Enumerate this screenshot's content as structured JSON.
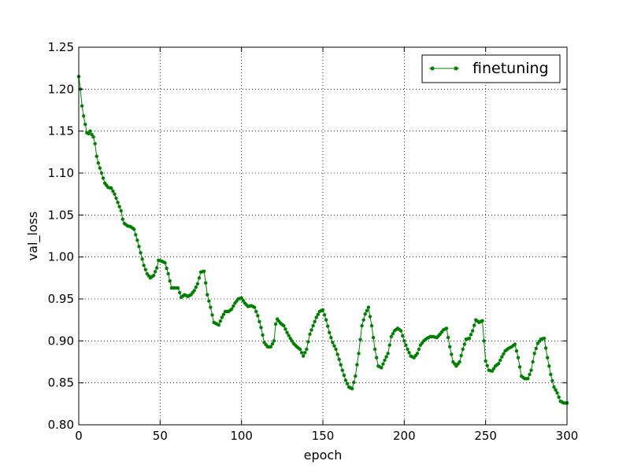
{
  "chart_data": {
    "type": "line",
    "xlabel": "epoch",
    "ylabel": "val_loss",
    "xlim": [
      0,
      300
    ],
    "ylim": [
      0.8,
      1.25
    ],
    "xticks": [
      0,
      50,
      100,
      150,
      200,
      250,
      300
    ],
    "yticks": [
      0.8,
      0.85,
      0.9,
      0.95,
      1.0,
      1.05,
      1.1,
      1.15,
      1.2,
      1.25
    ],
    "xtick_labels": [
      "0",
      "50",
      "100",
      "150",
      "200",
      "250",
      "300"
    ],
    "ytick_labels": [
      "0.80",
      "0.85",
      "0.90",
      "0.95",
      "1.00",
      "1.05",
      "1.10",
      "1.15",
      "1.20",
      "1.25"
    ],
    "grid": true,
    "legend_placement": "top-right",
    "series": [
      {
        "name": "finetuning",
        "color": "#008000",
        "marker": "dot",
        "anchors": [
          [
            0,
            1.215
          ],
          [
            1,
            1.2
          ],
          [
            2,
            1.18
          ],
          [
            3,
            1.168
          ],
          [
            4,
            1.158
          ],
          [
            5,
            1.148
          ],
          [
            6,
            1.147
          ],
          [
            7,
            1.15
          ],
          [
            8,
            1.146
          ],
          [
            9,
            1.143
          ],
          [
            10,
            1.135
          ],
          [
            11,
            1.12
          ],
          [
            12,
            1.112
          ],
          [
            14,
            1.1
          ],
          [
            16,
            1.088
          ],
          [
            18,
            1.083
          ],
          [
            20,
            1.082
          ],
          [
            22,
            1.075
          ],
          [
            24,
            1.065
          ],
          [
            26,
            1.055
          ],
          [
            27,
            1.045
          ],
          [
            28,
            1.04
          ],
          [
            30,
            1.037
          ],
          [
            32,
            1.036
          ],
          [
            34,
            1.033
          ],
          [
            36,
            1.02
          ],
          [
            38,
            1.005
          ],
          [
            40,
            0.99
          ],
          [
            42,
            0.98
          ],
          [
            44,
            0.975
          ],
          [
            46,
            0.978
          ],
          [
            48,
            0.987
          ],
          [
            49,
            0.996
          ],
          [
            51,
            0.995
          ],
          [
            53,
            0.993
          ],
          [
            55,
            0.98
          ],
          [
            57,
            0.963
          ],
          [
            59,
            0.963
          ],
          [
            61,
            0.963
          ],
          [
            63,
            0.952
          ],
          [
            65,
            0.955
          ],
          [
            67,
            0.953
          ],
          [
            69,
            0.955
          ],
          [
            71,
            0.96
          ],
          [
            73,
            0.968
          ],
          [
            75,
            0.982
          ],
          [
            77,
            0.983
          ],
          [
            79,
            0.955
          ],
          [
            81,
            0.94
          ],
          [
            83,
            0.922
          ],
          [
            86,
            0.919
          ],
          [
            88,
            0.928
          ],
          [
            90,
            0.935
          ],
          [
            92,
            0.935
          ],
          [
            94,
            0.938
          ],
          [
            96,
            0.945
          ],
          [
            98,
            0.95
          ],
          [
            100,
            0.951
          ],
          [
            102,
            0.945
          ],
          [
            104,
            0.941
          ],
          [
            106,
            0.942
          ],
          [
            108,
            0.94
          ],
          [
            110,
            0.93
          ],
          [
            112,
            0.916
          ],
          [
            114,
            0.898
          ],
          [
            116,
            0.893
          ],
          [
            118,
            0.893
          ],
          [
            120,
            0.9
          ],
          [
            121,
            0.92
          ],
          [
            122,
            0.926
          ],
          [
            124,
            0.921
          ],
          [
            126,
            0.918
          ],
          [
            128,
            0.91
          ],
          [
            130,
            0.903
          ],
          [
            132,
            0.897
          ],
          [
            134,
            0.893
          ],
          [
            136,
            0.89
          ],
          [
            138,
            0.882
          ],
          [
            140,
            0.89
          ],
          [
            142,
            0.908
          ],
          [
            144,
            0.918
          ],
          [
            146,
            0.928
          ],
          [
            148,
            0.935
          ],
          [
            150,
            0.937
          ],
          [
            152,
            0.925
          ],
          [
            154,
            0.91
          ],
          [
            156,
            0.898
          ],
          [
            158,
            0.89
          ],
          [
            160,
            0.878
          ],
          [
            162,
            0.865
          ],
          [
            164,
            0.853
          ],
          [
            166,
            0.845
          ],
          [
            168,
            0.843
          ],
          [
            170,
            0.858
          ],
          [
            172,
            0.885
          ],
          [
            174,
            0.918
          ],
          [
            176,
            0.932
          ],
          [
            178,
            0.94
          ],
          [
            180,
            0.918
          ],
          [
            182,
            0.89
          ],
          [
            184,
            0.87
          ],
          [
            186,
            0.868
          ],
          [
            188,
            0.877
          ],
          [
            190,
            0.885
          ],
          [
            192,
            0.905
          ],
          [
            194,
            0.912
          ],
          [
            196,
            0.915
          ],
          [
            198,
            0.912
          ],
          [
            200,
            0.9
          ],
          [
            202,
            0.89
          ],
          [
            204,
            0.882
          ],
          [
            206,
            0.88
          ],
          [
            208,
            0.885
          ],
          [
            210,
            0.895
          ],
          [
            212,
            0.9
          ],
          [
            214,
            0.903
          ],
          [
            216,
            0.905
          ],
          [
            218,
            0.905
          ],
          [
            220,
            0.904
          ],
          [
            222,
            0.908
          ],
          [
            224,
            0.913
          ],
          [
            226,
            0.915
          ],
          [
            228,
            0.893
          ],
          [
            230,
            0.875
          ],
          [
            232,
            0.87
          ],
          [
            234,
            0.875
          ],
          [
            236,
            0.89
          ],
          [
            238,
            0.902
          ],
          [
            240,
            0.903
          ],
          [
            242,
            0.912
          ],
          [
            244,
            0.925
          ],
          [
            246,
            0.922
          ],
          [
            248,
            0.924
          ],
          [
            250,
            0.876
          ],
          [
            252,
            0.865
          ],
          [
            254,
            0.864
          ],
          [
            256,
            0.87
          ],
          [
            258,
            0.873
          ],
          [
            260,
            0.881
          ],
          [
            262,
            0.888
          ],
          [
            264,
            0.891
          ],
          [
            266,
            0.893
          ],
          [
            268,
            0.896
          ],
          [
            270,
            0.88
          ],
          [
            272,
            0.858
          ],
          [
            274,
            0.855
          ],
          [
            276,
            0.855
          ],
          [
            278,
            0.865
          ],
          [
            280,
            0.885
          ],
          [
            282,
            0.897
          ],
          [
            284,
            0.902
          ],
          [
            286,
            0.903
          ],
          [
            288,
            0.88
          ],
          [
            290,
            0.86
          ],
          [
            292,
            0.845
          ],
          [
            294,
            0.838
          ],
          [
            296,
            0.828
          ],
          [
            298,
            0.826
          ],
          [
            300,
            0.826
          ]
        ]
      }
    ]
  }
}
